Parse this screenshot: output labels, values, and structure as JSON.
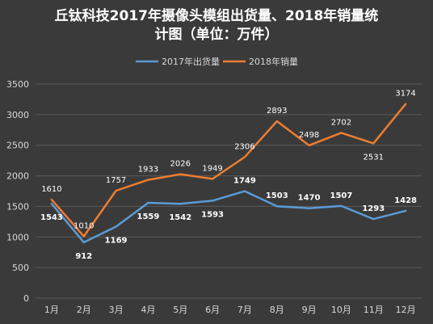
{
  "chart_data": {
    "type": "line",
    "title_lines": [
      "丘钛科技2017年摄像头模组出货量、2018年销量统",
      "计图（单位：万件）"
    ],
    "categories": [
      "1月",
      "2月",
      "3月",
      "4月",
      "5月",
      "6月",
      "7月",
      "8月",
      "9月",
      "10月",
      "11月",
      "12月"
    ],
    "ylim": [
      0,
      3500
    ],
    "yticks": [
      0,
      500,
      1000,
      1500,
      2000,
      2500,
      3000,
      3500
    ],
    "grid": true,
    "legend_position": "top",
    "series": [
      {
        "name": "2017年出货量",
        "color": "#5b9bd5",
        "values": [
          1543,
          912,
          1169,
          1559,
          1542,
          1593,
          1749,
          1503,
          1470,
          1507,
          1293,
          1428
        ]
      },
      {
        "name": "2018年销量",
        "color": "#ed7d31",
        "values": [
          1610,
          1010,
          1757,
          1933,
          2026,
          1949,
          2306,
          2893,
          2498,
          2702,
          2531,
          3174
        ]
      }
    ]
  }
}
